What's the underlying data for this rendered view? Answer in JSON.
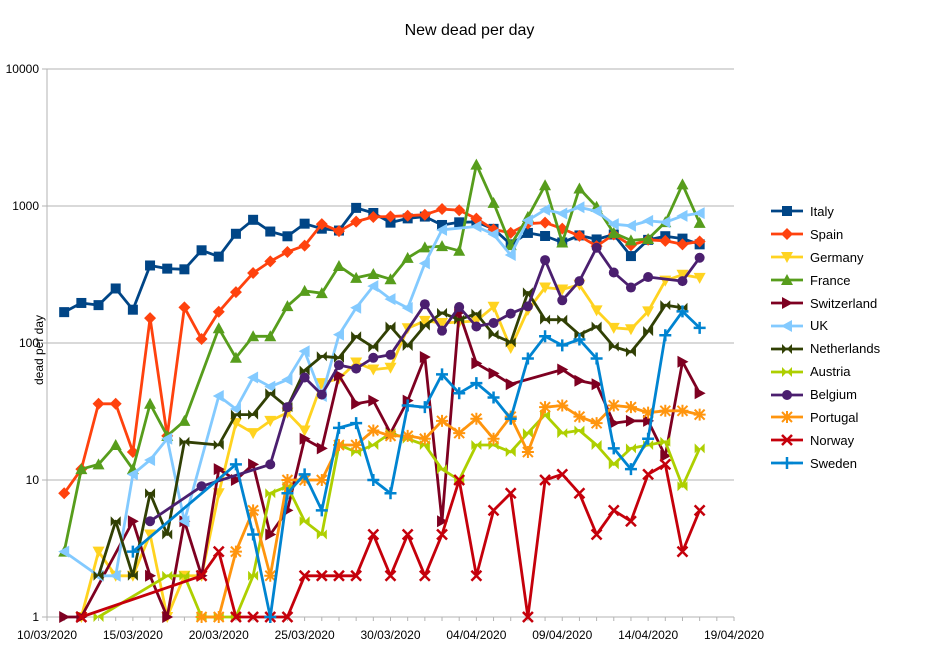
{
  "chart_data": {
    "type": "line",
    "title": "New dead per day",
    "ylabel": "dead per day",
    "xlabel": "",
    "yscale": "log",
    "ylim": [
      1,
      10000
    ],
    "y_ticks": [
      1,
      10,
      100,
      1000,
      10000
    ],
    "y_tick_labels": [
      "1",
      "10",
      "100",
      "1000",
      "10000"
    ],
    "x_tick_labels": [
      "10/03/2020",
      "15/03/2020",
      "20/03/2020",
      "25/03/2020",
      "30/03/2020",
      "04/04/2020",
      "09/04/2020",
      "14/04/2020",
      "19/04/2020"
    ],
    "x_range": [
      "10/03/2020",
      "19/04/2020"
    ],
    "grid": "horizontal",
    "legend_position": "right",
    "x": [
      "11/03/2020",
      "12/03/2020",
      "13/03/2020",
      "14/03/2020",
      "15/03/2020",
      "16/03/2020",
      "17/03/2020",
      "18/03/2020",
      "19/03/2020",
      "20/03/2020",
      "21/03/2020",
      "22/03/2020",
      "23/03/2020",
      "24/03/2020",
      "25/03/2020",
      "26/03/2020",
      "27/03/2020",
      "28/03/2020",
      "29/03/2020",
      "30/03/2020",
      "31/03/2020",
      "01/04/2020",
      "02/04/2020",
      "03/04/2020",
      "04/04/2020",
      "05/04/2020",
      "06/04/2020",
      "07/04/2020",
      "08/04/2020",
      "09/04/2020",
      "10/04/2020",
      "11/04/2020",
      "12/04/2020",
      "13/04/2020",
      "14/04/2020",
      "15/04/2020",
      "16/04/2020",
      "17/04/2020",
      "18/04/2020"
    ],
    "series": [
      {
        "name": "Italy",
        "color": "#004586",
        "marker": "square",
        "values": [
          168,
          196,
          189,
          250,
          175,
          368,
          349,
          345,
          475,
          427,
          627,
          793,
          651,
          601,
          743,
          683,
          662,
          969,
          889,
          756,
          812,
          837,
          727,
          760,
          766,
          681,
          525,
          636,
          604,
          542,
          610,
          570,
          619,
          431,
          566,
          602,
          578,
          525,
          null
        ]
      },
      {
        "name": "Spain",
        "color": "#ff420e",
        "marker": "diamond",
        "values": [
          8,
          12,
          36,
          36,
          16,
          152,
          21,
          182,
          107,
          169,
          235,
          324,
          394,
          462,
          514,
          738,
          655,
          769,
          832,
          838,
          849,
          864,
          950,
          932,
          809,
          674,
          637,
          743,
          757,
          683,
          605,
          510,
          619,
          517,
          567,
          557,
          525,
          551,
          null
        ]
      },
      {
        "name": "Germany",
        "color": "#ffd320",
        "marker": "triangle-down",
        "values": [
          null,
          1,
          3,
          2,
          2,
          4,
          1,
          2,
          2,
          8,
          26,
          22,
          27,
          31,
          23,
          51,
          55,
          72,
          64,
          66,
          128,
          145,
          140,
          142,
          145,
          184,
          92,
          174,
          254,
          246,
          266,
          173,
          129,
          126,
          170,
          285,
          315,
          299,
          null
        ]
      },
      {
        "name": "France",
        "color": "#579d1c",
        "marker": "triangle-up",
        "values": [
          3,
          12,
          13,
          18,
          12,
          36,
          21,
          27,
          null,
          128,
          78,
          112,
          112,
          186,
          240,
          231,
          365,
          299,
          319,
          292,
          418,
          499,
          509,
          471,
          2004,
          1053,
          518,
          833,
          1417,
          541,
          1341,
          987,
          635,
          561,
          574,
          762,
          1438,
          753,
          null
        ]
      },
      {
        "name": "Switzerland",
        "color": "#7e0021",
        "marker": "triangle-right",
        "values": [
          1,
          1,
          null,
          null,
          5,
          2,
          1,
          5,
          2,
          12,
          10,
          13,
          4,
          6,
          20,
          17,
          58,
          36,
          38,
          22,
          38,
          79,
          5,
          167,
          71,
          60,
          50,
          null,
          null,
          64,
          53,
          50,
          26,
          27,
          27,
          15,
          73,
          43,
          null
        ]
      },
      {
        "name": "UK",
        "color": "#83caff",
        "marker": "triangle-left",
        "values": [
          3,
          null,
          2,
          2,
          11,
          14,
          20,
          5,
          null,
          41,
          33,
          56,
          48,
          54,
          87,
          41,
          115,
          181,
          260,
          209,
          180,
          381,
          670,
          null,
          708,
          621,
          439,
          786,
          938,
          881,
          980,
          917,
          737,
          717,
          778,
          761,
          847,
          888,
          null
        ]
      },
      {
        "name": "Netherlands",
        "color": "#314004",
        "marker": "hourglass",
        "values": [
          null,
          null,
          2,
          5,
          2,
          8,
          4,
          19,
          null,
          18,
          30,
          30,
          43,
          34,
          63,
          80,
          78,
          112,
          93,
          132,
          95,
          134,
          166,
          148,
          164,
          115,
          101,
          234,
          148,
          148,
          115,
          132,
          94,
          86,
          122,
          189,
          181,
          null,
          null
        ]
      },
      {
        "name": "Austria",
        "color": "#aecf00",
        "marker": "hourglass",
        "values": [
          null,
          null,
          1,
          null,
          null,
          null,
          2,
          2,
          1,
          1,
          1,
          2,
          8,
          9,
          5,
          4,
          18,
          16,
          18,
          22,
          20,
          18,
          12,
          10,
          18,
          18,
          16,
          22,
          30,
          22,
          23,
          18,
          13,
          17,
          18,
          19,
          9,
          17,
          null
        ]
      },
      {
        "name": "Belgium",
        "color": "#4b1f6f",
        "marker": "circle",
        "values": [
          null,
          null,
          null,
          null,
          null,
          5,
          null,
          null,
          9,
          null,
          null,
          null,
          13,
          34,
          56,
          42,
          69,
          65,
          78,
          82,
          null,
          192,
          123,
          183,
          132,
          140,
          164,
          185,
          403,
          205,
          283,
          496,
          327,
          254,
          303,
          null,
          283,
          419,
          null
        ]
      },
      {
        "name": "Portugal",
        "color": "#ff950e",
        "marker": "star",
        "values": [
          null,
          null,
          null,
          null,
          null,
          null,
          null,
          null,
          1,
          1,
          3,
          6,
          2,
          10,
          10,
          10,
          18,
          18,
          23,
          21,
          21,
          20,
          27,
          22,
          28,
          20,
          29,
          16,
          34,
          35,
          29,
          26,
          35,
          34,
          31,
          32,
          32,
          30,
          null
        ]
      },
      {
        "name": "Norway",
        "color": "#c5000b",
        "marker": "x",
        "values": [
          null,
          1,
          null,
          null,
          null,
          null,
          null,
          null,
          2,
          3,
          1,
          1,
          1,
          1,
          2,
          2,
          2,
          2,
          4,
          2,
          4,
          2,
          4,
          10,
          2,
          6,
          8,
          1,
          10,
          11,
          8,
          4,
          6,
          5,
          11,
          13,
          3,
          6,
          null
        ]
      },
      {
        "name": "Sweden",
        "color": "#0084d1",
        "marker": "plus",
        "values": [
          null,
          null,
          null,
          null,
          3,
          null,
          null,
          null,
          null,
          null,
          13,
          4,
          1,
          8,
          11,
          6,
          24,
          26,
          10,
          8,
          35,
          34,
          59,
          43,
          51,
          40,
          28,
          77,
          112,
          96,
          106,
          77,
          17,
          12,
          20,
          114,
          170,
          129,
          null
        ]
      }
    ]
  }
}
